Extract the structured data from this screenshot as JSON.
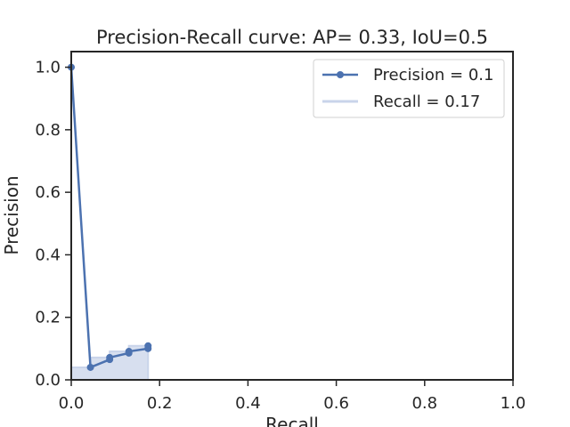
{
  "chart_data": {
    "type": "line",
    "title": "Precision-Recall curve: AP= 0.33, IoU=0.5",
    "xlabel": "Recall",
    "ylabel": "Precision",
    "xlim": [
      0,
      1
    ],
    "ylim": [
      0,
      1.05
    ],
    "xticks": [
      "0.0",
      "0.2",
      "0.4",
      "0.6",
      "0.8",
      "1.0"
    ],
    "yticks": [
      "0.0",
      "0.2",
      "0.4",
      "0.6",
      "0.8",
      "1.0"
    ],
    "grid": false,
    "legend_position": "top-right",
    "series": [
      {
        "name": "Precision = 0.1",
        "kind": "line-with-markers",
        "color": "#4c72b0",
        "x": [
          0.0,
          0.0435,
          0.087,
          0.087,
          0.1304,
          0.1304,
          0.1739,
          0.1739
        ],
        "y": [
          1.0,
          0.04,
          0.065,
          0.0714,
          0.0857,
          0.0909,
          0.1,
          0.1087
        ]
      },
      {
        "name": "Recall = 0.17",
        "kind": "filled-step",
        "color": "#c9d4ea",
        "x": [
          0.0,
          0.0435,
          0.0435,
          0.087,
          0.087,
          0.1304,
          0.1304,
          0.1739,
          0.1739
        ],
        "y": [
          0.04,
          0.04,
          0.0714,
          0.0714,
          0.0909,
          0.0909,
          0.1087,
          0.1087,
          0.0
        ]
      }
    ]
  }
}
